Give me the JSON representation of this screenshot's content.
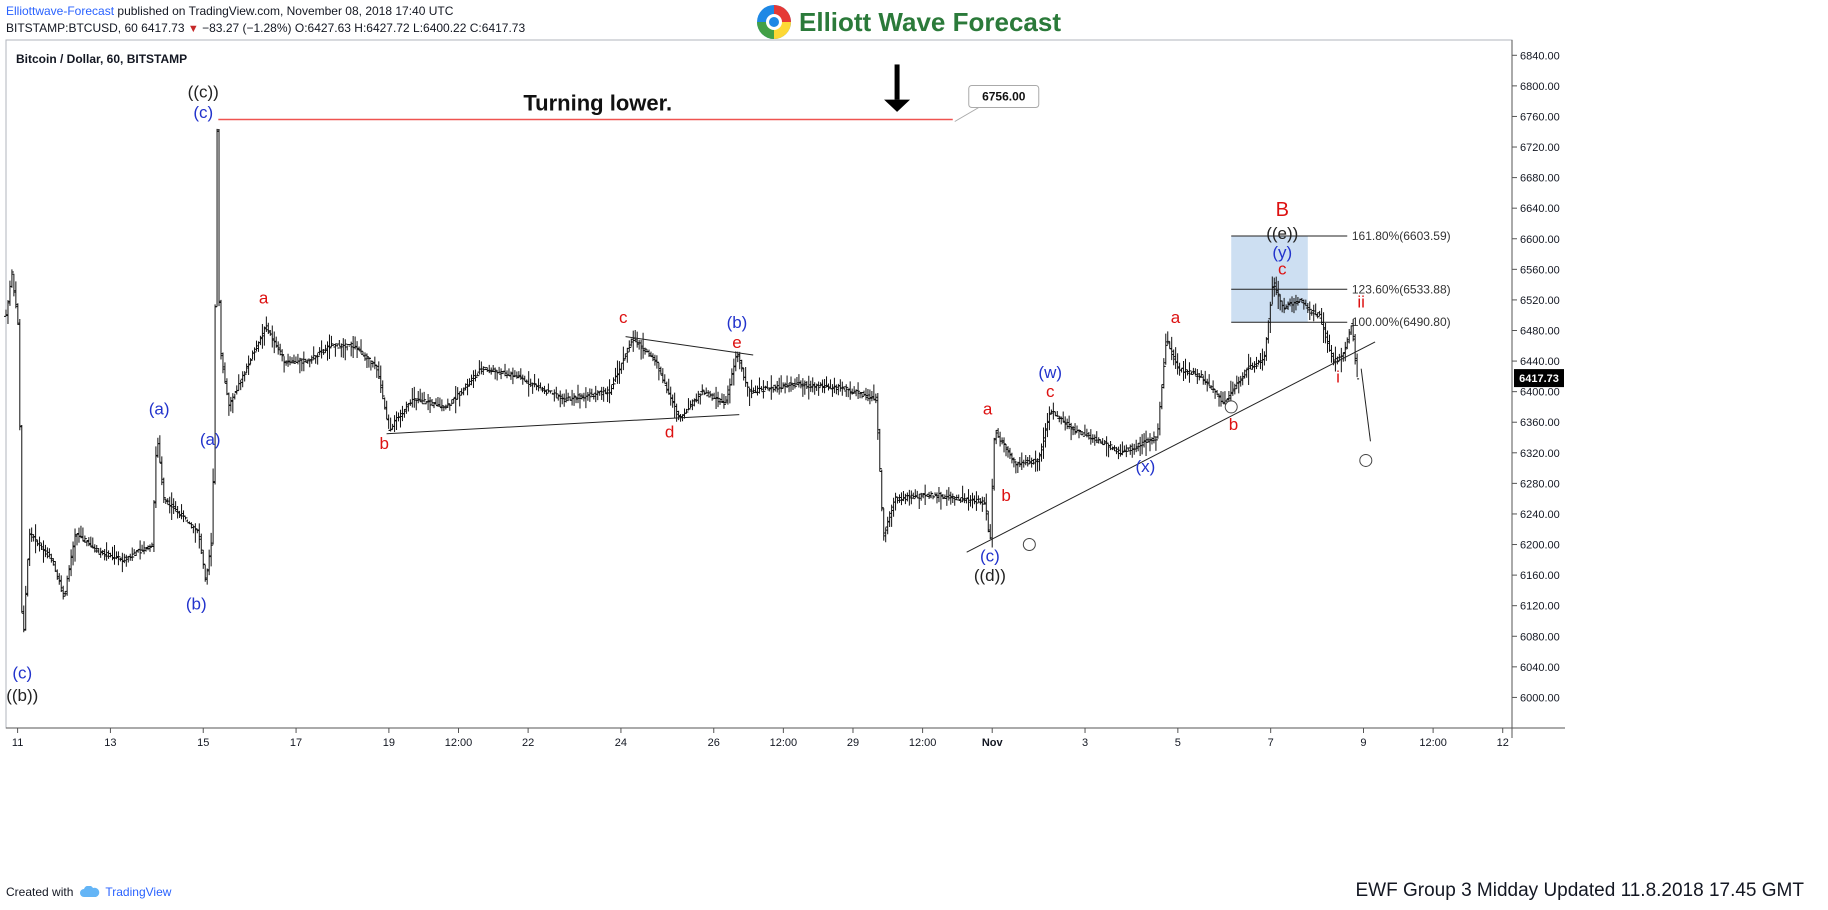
{
  "header": {
    "author": "Elliottwave-Forecast",
    "published_text": "published on TradingView.com, November 08, 2018 17:40 UTC",
    "symbol": "BITSTAMP:BTCUSD, 60",
    "last": "6417.73",
    "change": "−83.27 (−1.28%)",
    "o_label": "O:",
    "o": "6427.63",
    "h_label": "H:",
    "h": "6427.72",
    "l_label": "L:",
    "l": "6400.22",
    "c_label": "C:",
    "c": "6417.73"
  },
  "logo": {
    "text": "Elliott Wave Forecast",
    "colors": [
      "#e53935",
      "#fdd835",
      "#43a047",
      "#1e88e5"
    ]
  },
  "symbol_title": "Bitcoin / Dollar, 60, BITSTAMP",
  "footer": {
    "created_with": "Created with",
    "tradingview": "TradingView",
    "stamp": "EWF Group 3 Midday Updated 11.8.2018 17.45 GMT"
  },
  "chart_data": {
    "type": "ohlc",
    "ylim": [
      5960,
      6860
    ],
    "y_ticks": [
      "6000.00",
      "6040.00",
      "6080.00",
      "6120.00",
      "6160.00",
      "6200.00",
      "6240.00",
      "6280.00",
      "6320.00",
      "6360.00",
      "6400.00",
      "6440.00",
      "6480.00",
      "6520.00",
      "6560.00",
      "6600.00",
      "6640.00",
      "6680.00",
      "6720.00",
      "6760.00",
      "6800.00",
      "6840.00"
    ],
    "x_ticks": [
      {
        "label": "11",
        "t": 0.5
      },
      {
        "label": "13",
        "t": 4.5
      },
      {
        "label": "15",
        "t": 8.5
      },
      {
        "label": "17",
        "t": 12.5
      },
      {
        "label": "19",
        "t": 16.5
      },
      {
        "label": "12:00",
        "t": 19.5
      },
      {
        "label": "22",
        "t": 22.5
      },
      {
        "label": "24",
        "t": 26.5
      },
      {
        "label": "26",
        "t": 30.5
      },
      {
        "label": "12:00",
        "t": 33.5
      },
      {
        "label": "29",
        "t": 36.5
      },
      {
        "label": "12:00",
        "t": 39.5
      },
      {
        "label": "Nov",
        "t": 42.5
      },
      {
        "label": "3",
        "t": 46.5
      },
      {
        "label": "5",
        "t": 50.5
      },
      {
        "label": "7",
        "t": 54.5
      },
      {
        "label": "9",
        "t": 58.5
      },
      {
        "label": "12:00",
        "t": 61.5
      },
      {
        "label": "12",
        "t": 64.5
      }
    ],
    "price_path": [
      {
        "t": 0,
        "p": 6500
      },
      {
        "t": 0.25,
        "p": 6555
      },
      {
        "t": 0.55,
        "p": 6480
      },
      {
        "t": 0.7,
        "p": 6055
      },
      {
        "t": 1.0,
        "p": 6215
      },
      {
        "t": 2.0,
        "p": 6180
      },
      {
        "t": 2.5,
        "p": 6130
      },
      {
        "t": 3.0,
        "p": 6215
      },
      {
        "t": 4.0,
        "p": 6190
      },
      {
        "t": 5.0,
        "p": 6180
      },
      {
        "t": 6.3,
        "p": 6200
      },
      {
        "t": 6.5,
        "p": 6345
      },
      {
        "t": 6.8,
        "p": 6260
      },
      {
        "t": 7.5,
        "p": 6240
      },
      {
        "t": 8.3,
        "p": 6215
      },
      {
        "t": 8.6,
        "p": 6150
      },
      {
        "t": 8.9,
        "p": 6215
      },
      {
        "t": 9.1,
        "p": 6756
      },
      {
        "t": 9.2,
        "p": 6460
      },
      {
        "t": 9.6,
        "p": 6380
      },
      {
        "t": 10.5,
        "p": 6440
      },
      {
        "t": 11.2,
        "p": 6485
      },
      {
        "t": 12.0,
        "p": 6440
      },
      {
        "t": 13.0,
        "p": 6440
      },
      {
        "t": 14.0,
        "p": 6460
      },
      {
        "t": 15.0,
        "p": 6460
      },
      {
        "t": 16.0,
        "p": 6430
      },
      {
        "t": 16.5,
        "p": 6350
      },
      {
        "t": 17.5,
        "p": 6390
      },
      {
        "t": 19.0,
        "p": 6380
      },
      {
        "t": 20.5,
        "p": 6430
      },
      {
        "t": 22.0,
        "p": 6420
      },
      {
        "t": 24.0,
        "p": 6390
      },
      {
        "t": 26.0,
        "p": 6400
      },
      {
        "t": 27.0,
        "p": 6470
      },
      {
        "t": 28.0,
        "p": 6440
      },
      {
        "t": 29.0,
        "p": 6365
      },
      {
        "t": 30.0,
        "p": 6400
      },
      {
        "t": 31.0,
        "p": 6385
      },
      {
        "t": 31.5,
        "p": 6450
      },
      {
        "t": 32.0,
        "p": 6400
      },
      {
        "t": 34.0,
        "p": 6410
      },
      {
        "t": 36.0,
        "p": 6405
      },
      {
        "t": 37.5,
        "p": 6390
      },
      {
        "t": 37.8,
        "p": 6210
      },
      {
        "t": 38.3,
        "p": 6260
      },
      {
        "t": 40.0,
        "p": 6265
      },
      {
        "t": 42.2,
        "p": 6255
      },
      {
        "t": 42.4,
        "p": 6200
      },
      {
        "t": 42.6,
        "p": 6350
      },
      {
        "t": 43.5,
        "p": 6305
      },
      {
        "t": 44.5,
        "p": 6310
      },
      {
        "t": 45.0,
        "p": 6375
      },
      {
        "t": 46.0,
        "p": 6350
      },
      {
        "t": 47.5,
        "p": 6330
      },
      {
        "t": 48.0,
        "p": 6320
      },
      {
        "t": 49.6,
        "p": 6340
      },
      {
        "t": 50.0,
        "p": 6470
      },
      {
        "t": 50.5,
        "p": 6430
      },
      {
        "t": 51.5,
        "p": 6420
      },
      {
        "t": 52.5,
        "p": 6385
      },
      {
        "t": 53.5,
        "p": 6430
      },
      {
        "t": 54.2,
        "p": 6440
      },
      {
        "t": 54.6,
        "p": 6545
      },
      {
        "t": 55.0,
        "p": 6510
      },
      {
        "t": 55.8,
        "p": 6520
      },
      {
        "t": 56.2,
        "p": 6505
      },
      {
        "t": 56.6,
        "p": 6500
      },
      {
        "t": 57.2,
        "p": 6440
      },
      {
        "t": 57.6,
        "p": 6445
      },
      {
        "t": 58.0,
        "p": 6490
      },
      {
        "t": 58.2,
        "p": 6420
      },
      {
        "t": 58.3,
        "p": 6418
      }
    ],
    "last_price": 6417.73,
    "resistance": {
      "label": "6756.00",
      "value": 6756,
      "t_start": 9.15,
      "t_end": 40.8
    },
    "annotation_text": "Turning lower.",
    "fib_levels": [
      {
        "label": "161.80%(6603.59)",
        "value": 6603.59
      },
      {
        "label": "123.60%(6533.88)",
        "value": 6533.88
      },
      {
        "label": "100.00%(6490.80)",
        "value": 6490.8
      }
    ],
    "fib_box": {
      "t_start": 52.8,
      "t_end": 56.1,
      "top": 6603.59,
      "bottom": 6490.8
    },
    "trendlines": [
      {
        "t1": 16.4,
        "p1": 6345,
        "t2": 31.6,
        "p2": 6370
      },
      {
        "t1": 26.7,
        "p1": 6472,
        "t2": 32.2,
        "p2": 6448
      },
      {
        "t1": 41.4,
        "p1": 6190,
        "t2": 59.0,
        "p2": 6465
      },
      {
        "t1": 58.4,
        "p1": 6430,
        "t2": 58.8,
        "p2": 6335
      }
    ],
    "markers": [
      {
        "t": 44.1,
        "p": 6200
      },
      {
        "t": 52.8,
        "p": 6380
      },
      {
        "t": 58.6,
        "p": 6310
      }
    ],
    "wave_labels": [
      {
        "text": "((c))",
        "t": 8.5,
        "p": 6785,
        "color": "#222222"
      },
      {
        "text": "(c)",
        "t": 8.5,
        "p": 6758,
        "color": "#2233cc"
      },
      {
        "text": "(a)",
        "t": 8.8,
        "p": 6330,
        "color": "#2233cc"
      },
      {
        "text": "(a)",
        "t": 6.6,
        "p": 6370,
        "color": "#2233cc"
      },
      {
        "text": "(b)",
        "t": 8.2,
        "p": 6115,
        "color": "#2233cc"
      },
      {
        "text": "(c)",
        "t": 0.7,
        "p": 6025,
        "color": "#2233cc"
      },
      {
        "text": "((b))",
        "t": 0.7,
        "p": 5995,
        "color": "#222222"
      },
      {
        "text": "a",
        "t": 11.1,
        "p": 6515,
        "color": "#dd1111"
      },
      {
        "text": "b",
        "t": 16.3,
        "p": 6325,
        "color": "#dd1111"
      },
      {
        "text": "c",
        "t": 26.6,
        "p": 6490,
        "color": "#dd1111"
      },
      {
        "text": "d",
        "t": 28.6,
        "p": 6340,
        "color": "#dd1111"
      },
      {
        "text": "e",
        "t": 31.5,
        "p": 6457,
        "color": "#dd1111"
      },
      {
        "text": "(b)",
        "t": 31.5,
        "p": 6483,
        "color": "#2233cc"
      },
      {
        "text": "a",
        "t": 42.3,
        "p": 6370,
        "color": "#dd1111"
      },
      {
        "text": "b",
        "t": 43.1,
        "p": 6257,
        "color": "#dd1111"
      },
      {
        "text": "(c)",
        "t": 42.4,
        "p": 6178,
        "color": "#2233cc"
      },
      {
        "text": "((d))",
        "t": 42.4,
        "p": 6152,
        "color": "#222222"
      },
      {
        "text": "(w)",
        "t": 45.0,
        "p": 6418,
        "color": "#2233cc"
      },
      {
        "text": "c",
        "t": 45.0,
        "p": 6393,
        "color": "#dd1111"
      },
      {
        "text": "(x)",
        "t": 49.1,
        "p": 6295,
        "color": "#2233cc"
      },
      {
        "text": "a",
        "t": 50.4,
        "p": 6490,
        "color": "#dd1111"
      },
      {
        "text": "b",
        "t": 52.9,
        "p": 6350,
        "color": "#dd1111"
      },
      {
        "text": "c",
        "t": 55.0,
        "p": 6553,
        "color": "#dd1111"
      },
      {
        "text": "(y)",
        "t": 55.0,
        "p": 6575,
        "color": "#2233cc"
      },
      {
        "text": "((e))",
        "t": 55.0,
        "p": 6600,
        "color": "#222222"
      },
      {
        "text": "B",
        "t": 55.0,
        "p": 6630,
        "color": "#dd1111"
      },
      {
        "text": "ii",
        "t": 58.4,
        "p": 6510,
        "color": "#dd1111"
      },
      {
        "text": "i",
        "t": 57.4,
        "p": 6412,
        "color": "#dd1111"
      }
    ],
    "colors": {
      "bars": "#111111",
      "resistance": "#ef5350",
      "fib_box": "#bcd4ee",
      "trend": "#222222",
      "arrow": "#000000"
    },
    "price_label_bg": "#000000"
  }
}
